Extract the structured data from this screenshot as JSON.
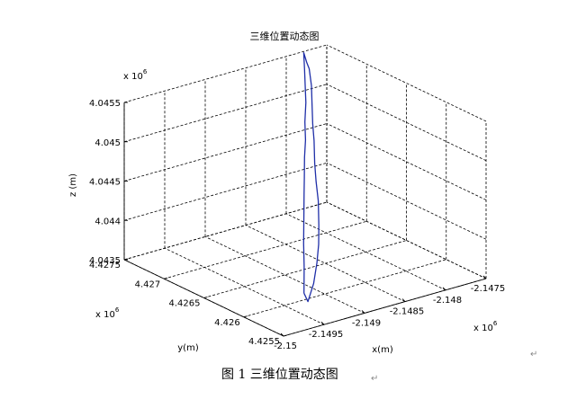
{
  "chart_data": {
    "type": "line3d",
    "title": "三维位置动态图",
    "xlabel": "x(m)",
    "ylabel": "y(m)",
    "zlabel": "z (m)",
    "x_exponent": "x 10",
    "y_exponent": "x 10",
    "z_exponent": "x 10",
    "exponent_power": "6",
    "xlim": [
      -2.15,
      -2.1475
    ],
    "ylim": [
      4.4255,
      4.4275
    ],
    "zlim": [
      4.0435,
      4.0455
    ],
    "x_tick_labels": [
      "-2.15",
      "-2.1495",
      "-2.149",
      "-2.1485",
      "-2.148",
      "-2.1475"
    ],
    "y_tick_labels": [
      "4.4255",
      "4.426",
      "4.4265",
      "4.427",
      "4.4275"
    ],
    "z_tick_labels": [
      "4.0435",
      "4.044",
      "4.0445",
      "4.045",
      "4.0455"
    ],
    "grid": true,
    "line_color": "#1f2fa8",
    "series": [
      {
        "x": [
          -2.14963,
          -2.14946,
          -2.14929,
          -2.14907,
          -2.14893,
          -2.14879,
          -2.14865,
          -2.14849,
          -2.14838,
          -2.14825,
          -2.14816,
          -2.14807,
          -2.14802,
          -2.14807,
          -2.14811,
          -2.1482,
          -2.14834,
          -2.14848,
          -2.14861,
          -2.14877,
          -2.14892,
          -2.14906,
          -2.14922,
          -2.14935,
          -2.14947,
          -2.14958,
          -2.14966,
          -2.14963
        ],
        "y": [
          4.42562,
          4.42579,
          4.42597,
          4.42619,
          4.42633,
          4.42647,
          4.42661,
          4.42676,
          4.42688,
          4.427,
          4.4271,
          4.4272,
          4.42726,
          4.42717,
          4.4271,
          4.42698,
          4.42683,
          4.42668,
          4.42653,
          4.42636,
          4.42619,
          4.42602,
          4.42585,
          4.42572,
          4.42562,
          4.42555,
          4.42554,
          4.42562
        ],
        "z": [
          4.04388,
          4.04408,
          4.04424,
          4.04444,
          4.04459,
          4.04469,
          4.04484,
          4.04494,
          4.04508,
          4.04523,
          4.04538,
          4.04551,
          4.04567,
          4.0456,
          4.04557,
          4.04544,
          4.0453,
          4.04518,
          4.04508,
          4.04492,
          4.04482,
          4.04469,
          4.04451,
          4.04437,
          4.04422,
          4.04402,
          4.04382,
          4.04388
        ]
      }
    ]
  },
  "caption": "图 1  三维位置动态图",
  "paragraph_marks": [
    "↵",
    "↵"
  ]
}
